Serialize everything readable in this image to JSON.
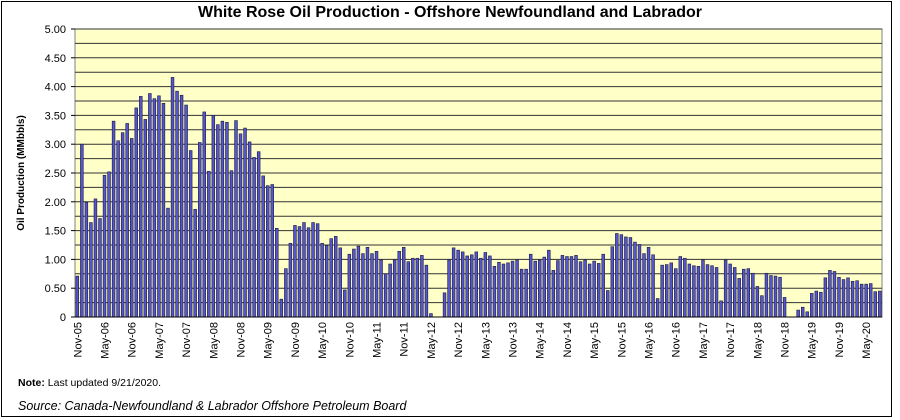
{
  "chart_data": {
    "type": "bar",
    "title": "White Rose Oil Production - Offshore Newfoundland and Labrador",
    "ylabel": "Oil Production (MMbbls)",
    "xlabel": "",
    "ylim": [
      0,
      5
    ],
    "yticks": [
      "0",
      "0.50",
      "1.00",
      "1.50",
      "2.00",
      "2.50",
      "3.00",
      "3.50",
      "4.00",
      "4.50",
      "5.00"
    ],
    "grid": true,
    "minor_grid_step": 0.25,
    "legend": "none",
    "colors": {
      "bar": "#5555cc",
      "bar_edge": "#1a1a40",
      "plot_bg": "#ffffc8",
      "grid": "#333333"
    },
    "categories": [
      "Nov-05",
      "Dec-05",
      "Jan-06",
      "Feb-06",
      "Mar-06",
      "Apr-06",
      "May-06",
      "Jun-06",
      "Jul-06",
      "Aug-06",
      "Sep-06",
      "Oct-06",
      "Nov-06",
      "Dec-06",
      "Jan-07",
      "Feb-07",
      "Mar-07",
      "Apr-07",
      "May-07",
      "Jun-07",
      "Jul-07",
      "Aug-07",
      "Sep-07",
      "Oct-07",
      "Nov-07",
      "Dec-07",
      "Jan-08",
      "Feb-08",
      "Mar-08",
      "Apr-08",
      "May-08",
      "Jun-08",
      "Jul-08",
      "Aug-08",
      "Sep-08",
      "Oct-08",
      "Nov-08",
      "Dec-08",
      "Jan-09",
      "Feb-09",
      "Mar-09",
      "Apr-09",
      "May-09",
      "Jun-09",
      "Jul-09",
      "Aug-09",
      "Sep-09",
      "Oct-09",
      "Nov-09",
      "Dec-09",
      "Jan-10",
      "Feb-10",
      "Mar-10",
      "Apr-10",
      "May-10",
      "Jun-10",
      "Jul-10",
      "Aug-10",
      "Sep-10",
      "Oct-10",
      "Nov-10",
      "Dec-10",
      "Jan-11",
      "Feb-11",
      "Mar-11",
      "Apr-11",
      "May-11",
      "Jun-11",
      "Jul-11",
      "Aug-11",
      "Sep-11",
      "Oct-11",
      "Nov-11",
      "Dec-11",
      "Jan-12",
      "Feb-12",
      "Mar-12",
      "Apr-12",
      "May-12",
      "Jun-12",
      "Jul-12",
      "Aug-12",
      "Sep-12",
      "Oct-12",
      "Nov-12",
      "Dec-12",
      "Jan-13",
      "Feb-13",
      "Mar-13",
      "Apr-13",
      "May-13",
      "Jun-13",
      "Jul-13",
      "Aug-13",
      "Sep-13",
      "Oct-13",
      "Nov-13",
      "Dec-13",
      "Jan-14",
      "Feb-14",
      "Mar-14",
      "Apr-14",
      "May-14",
      "Jun-14",
      "Jul-14",
      "Aug-14",
      "Sep-14",
      "Oct-14",
      "Nov-14",
      "Dec-14",
      "Jan-15",
      "Feb-15",
      "Mar-15",
      "Apr-15",
      "May-15",
      "Jun-15",
      "Jul-15",
      "Aug-15",
      "Sep-15",
      "Oct-15",
      "Nov-15",
      "Dec-15",
      "Jan-16",
      "Feb-16",
      "Mar-16",
      "Apr-16",
      "May-16",
      "Jun-16",
      "Jul-16",
      "Aug-16",
      "Sep-16",
      "Oct-16",
      "Nov-16",
      "Dec-16",
      "Jan-17",
      "Feb-17",
      "Mar-17",
      "Apr-17",
      "May-17",
      "Jun-17",
      "Jul-17",
      "Aug-17",
      "Sep-17",
      "Oct-17",
      "Nov-17",
      "Dec-17",
      "Jan-18",
      "Feb-18",
      "Mar-18",
      "Apr-18",
      "May-18",
      "Jun-18",
      "Jul-18",
      "Aug-18",
      "Sep-18",
      "Oct-18",
      "Nov-18",
      "Dec-18",
      "Jan-19",
      "Feb-19",
      "Mar-19",
      "Apr-19",
      "May-19",
      "Jun-19",
      "Jul-19",
      "Aug-19",
      "Sep-19",
      "Oct-19",
      "Nov-19",
      "Dec-19",
      "Jan-20",
      "Feb-20",
      "Mar-20",
      "Apr-20",
      "May-20",
      "Jun-20",
      "Jul-20",
      "Aug-20"
    ],
    "xtick_labels": [
      "Nov-05",
      "May-06",
      "Nov-06",
      "May-07",
      "Nov-07",
      "May-08",
      "Nov-08",
      "May-09",
      "Nov-09",
      "May-10",
      "Nov-10",
      "May-11",
      "Nov-11",
      "May-12",
      "Nov-12",
      "May-13",
      "Nov-13",
      "May-14",
      "Nov-14",
      "May-15",
      "Nov-15",
      "May-16",
      "Nov-16",
      "May-17",
      "Nov-17",
      "May-18",
      "Nov-18",
      "May-19",
      "Nov-19",
      "May-20"
    ],
    "values": [
      0.71,
      3.0,
      1.99,
      1.64,
      2.05,
      1.71,
      2.46,
      2.52,
      3.4,
      3.06,
      3.2,
      3.36,
      3.1,
      3.63,
      3.83,
      3.43,
      3.88,
      3.79,
      3.84,
      3.71,
      1.89,
      4.16,
      3.92,
      3.85,
      3.68,
      2.89,
      1.87,
      3.03,
      3.56,
      2.53,
      3.5,
      3.34,
      3.4,
      3.38,
      2.54,
      3.41,
      3.18,
      3.28,
      3.04,
      2.77,
      2.87,
      2.45,
      2.28,
      2.3,
      1.54,
      0.31,
      0.84,
      1.28,
      1.59,
      1.57,
      1.64,
      1.55,
      1.64,
      1.62,
      1.28,
      1.24,
      1.36,
      1.4,
      1.2,
      0.47,
      1.09,
      1.18,
      1.23,
      1.1,
      1.21,
      1.1,
      1.14,
      0.99,
      0.75,
      0.92,
      0.99,
      1.14,
      1.21,
      0.96,
      1.02,
      1.02,
      1.07,
      0.9,
      0.06,
      0,
      0,
      0.42,
      0.99,
      1.2,
      1.16,
      1.13,
      1.06,
      1.08,
      1.13,
      1.02,
      1.12,
      1.06,
      0.88,
      0.95,
      0.92,
      0.94,
      0.97,
      0.99,
      0.83,
      0.83,
      1.09,
      0.97,
      0.99,
      1.04,
      1.16,
      0.81,
      0.98,
      1.07,
      1.05,
      1.05,
      1.07,
      0.96,
      0.99,
      0.92,
      0.97,
      0.93,
      1.09,
      0.46,
      1.22,
      1.45,
      1.43,
      1.39,
      1.38,
      1.3,
      1.26,
      1.1,
      1.21,
      1.08,
      0.32,
      0.9,
      0.91,
      0.94,
      0.84,
      1.05,
      1.02,
      0.92,
      0.89,
      0.88,
      0.99,
      0.91,
      0.89,
      0.86,
      0.28,
      0.99,
      0.92,
      0.86,
      0.67,
      0.83,
      0.84,
      0.76,
      0.53,
      0.37,
      0.76,
      0.72,
      0.71,
      0.69,
      0.34,
      0,
      0,
      0.12,
      0.17,
      0.09,
      0.41,
      0.45,
      0.43,
      0.68,
      0.81,
      0.79,
      0.69,
      0.65,
      0.68,
      0.62,
      0.63,
      0.57,
      0.57,
      0.58,
      0.44,
      0.45
    ]
  },
  "footer": {
    "note_label": "Note:",
    "note_text": " Last updated 9/21/2020.",
    "source": "Source: Canada-Newfoundland & Labrador Offshore Petroleum Board"
  }
}
